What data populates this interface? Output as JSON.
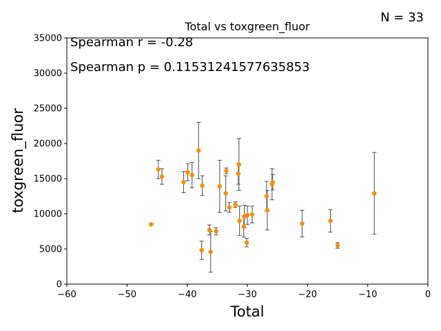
{
  "chart_data": {
    "type": "scatter",
    "title": "Total vs toxgreen_fluor",
    "xlabel": "Total",
    "ylabel": "toxgreen_fluor",
    "xlim": [
      -60,
      0
    ],
    "ylim": [
      0,
      35000
    ],
    "xticks": [
      -60,
      -50,
      -40,
      -30,
      -20,
      -10,
      0
    ],
    "yticks": [
      0,
      5000,
      10000,
      15000,
      20000,
      25000,
      30000,
      35000
    ],
    "grid": false,
    "marker_color": "#ff8c00",
    "errorbar_color": "#666666",
    "annotations": {
      "n": "N = 33",
      "spearman_r": "Spearman r = -0.28",
      "spearman_p": "Spearman p = 0.11531241577635853"
    },
    "points": [
      {
        "x": -46.0,
        "y": 8500
      },
      {
        "x": -44.8,
        "y": 16300,
        "err": 1300
      },
      {
        "x": -44.2,
        "y": 15300,
        "err": 1100
      },
      {
        "x": -40.6,
        "y": 14500,
        "err": 1500
      },
      {
        "x": -39.9,
        "y": 15900,
        "err": 1200
      },
      {
        "x": -39.2,
        "y": 15500,
        "err": 1800
      },
      {
        "x": -38.1,
        "y": 19000,
        "err": 4000
      },
      {
        "x": -37.5,
        "y": 14000,
        "err": 1400
      },
      {
        "x": -37.6,
        "y": 4800,
        "err": 1300
      },
      {
        "x": -36.3,
        "y": 7700,
        "err": 700
      },
      {
        "x": -36.1,
        "y": 4600,
        "err": 2900
      },
      {
        "x": -35.2,
        "y": 7500,
        "err": 500
      },
      {
        "x": -34.6,
        "y": 13900,
        "err": 3700
      },
      {
        "x": -33.6,
        "y": 12900,
        "err": 2500
      },
      {
        "x": -33.5,
        "y": 16100,
        "err": 400
      },
      {
        "x": -33.0,
        "y": 10900,
        "err": 700
      },
      {
        "x": -32.0,
        "y": 11300,
        "err": 400
      },
      {
        "x": -31.5,
        "y": 15700,
        "err": 1500
      },
      {
        "x": -31.4,
        "y": 17000,
        "err": 3700
      },
      {
        "x": -31.3,
        "y": 9000,
        "err": 2100
      },
      {
        "x": -30.6,
        "y": 8200,
        "err": 1500
      },
      {
        "x": -30.5,
        "y": 9600,
        "err": 1600
      },
      {
        "x": -30.1,
        "y": 5900,
        "err": 600
      },
      {
        "x": -30.0,
        "y": 9800,
        "err": 1300
      },
      {
        "x": -29.2,
        "y": 9900,
        "err": 1200
      },
      {
        "x": -26.8,
        "y": 12500,
        "err": 2100
      },
      {
        "x": -26.7,
        "y": 10500,
        "err": 2800
      },
      {
        "x": -25.9,
        "y": 14200,
        "err": 2200
      },
      {
        "x": -25.8,
        "y": 14500,
        "err": 1100
      },
      {
        "x": -20.9,
        "y": 8600,
        "err": 1900
      },
      {
        "x": -16.2,
        "y": 9000,
        "err": 1600
      },
      {
        "x": -15.0,
        "y": 5500,
        "err": 400
      },
      {
        "x": -8.9,
        "y": 12900,
        "err": 5800
      }
    ]
  }
}
